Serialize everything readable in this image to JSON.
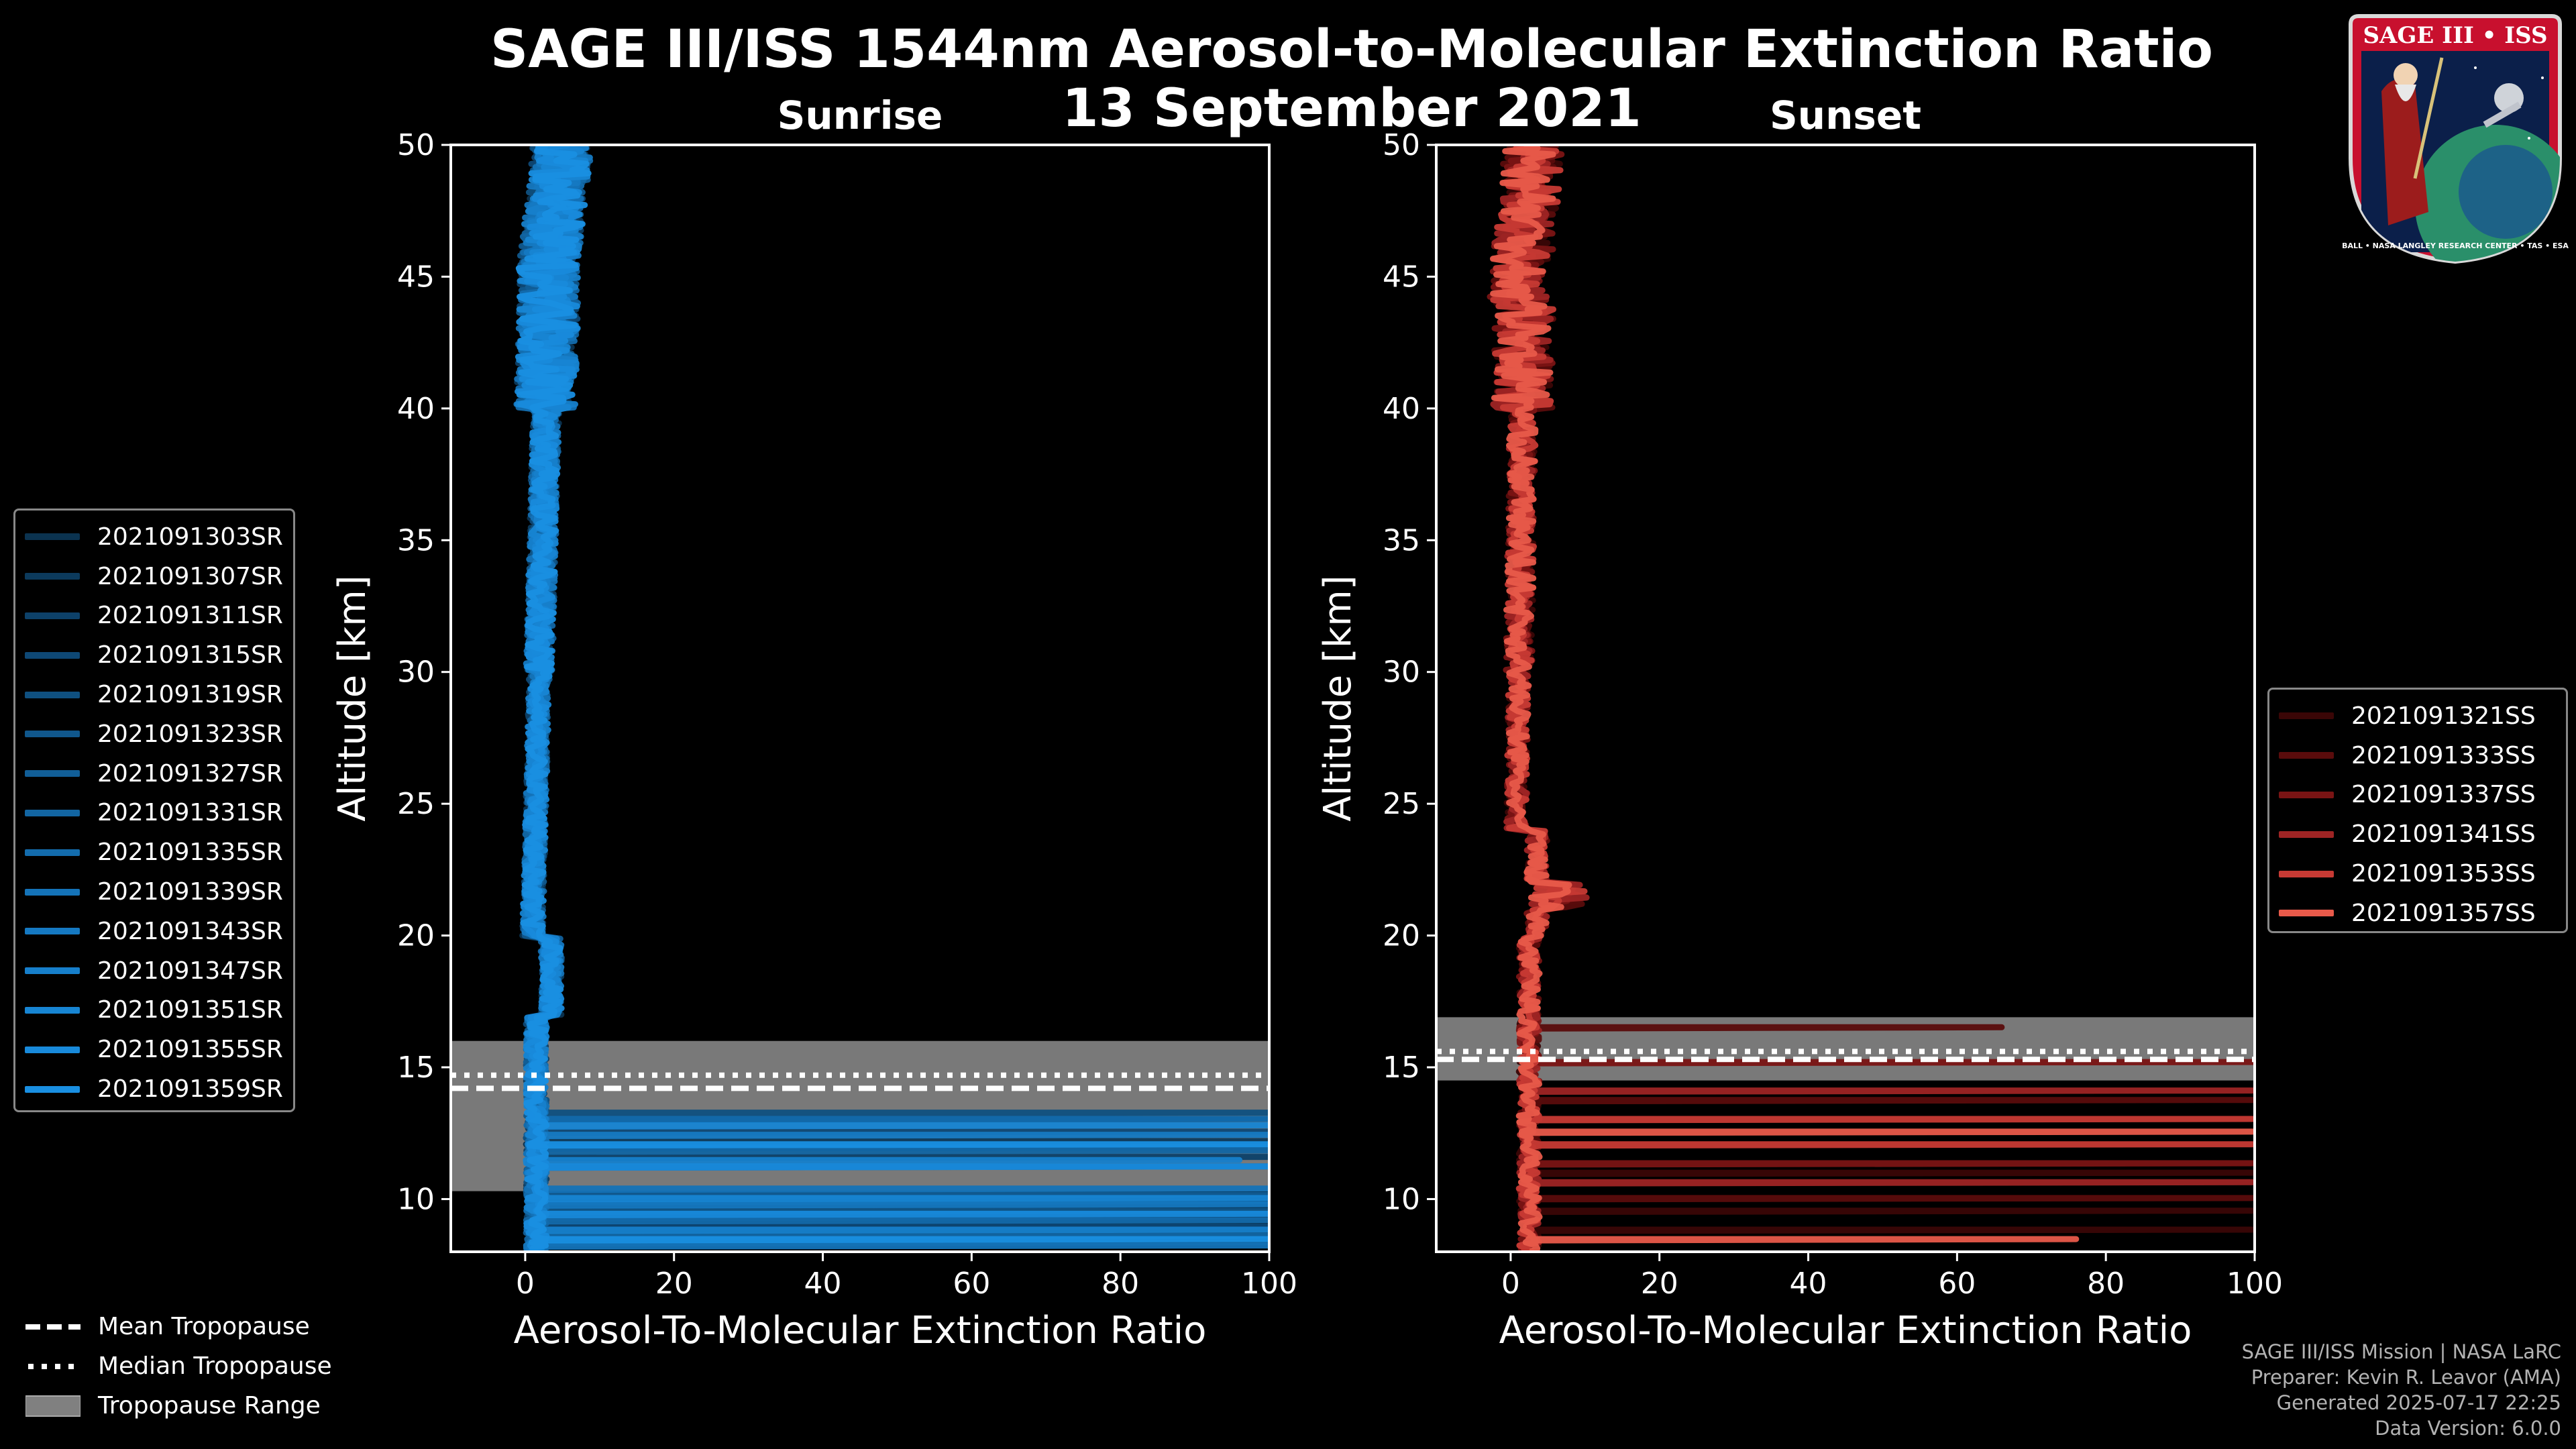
{
  "title": "SAGE III/ISS 1544nm Aerosol-to-Molecular Extinction Ratio",
  "date": "13 September 2021",
  "colors": {
    "background": "#000000",
    "axis": "#ffffff",
    "tropo_range": "#808080"
  },
  "chart_data": [
    {
      "type": "line",
      "title": "Sunrise",
      "xlabel": "Aerosol-To-Molecular Extinction Ratio",
      "ylabel": "Altitude [km]",
      "xlim": [
        -10,
        100
      ],
      "ylim": [
        8,
        50
      ],
      "xticks": [
        0,
        20,
        40,
        60,
        80,
        100
      ],
      "yticks": [
        10,
        15,
        20,
        25,
        30,
        35,
        40,
        45,
        50
      ],
      "tropopause": {
        "mean": 14.2,
        "median": 14.7,
        "range": [
          10.3,
          16.0
        ]
      },
      "series": [
        {
          "name": "2021091303SR",
          "color": "#0b3350",
          "low_spikes": [
            [
              13.0,
              100
            ],
            [
              9.3,
              100
            ]
          ]
        },
        {
          "name": "2021091307SR",
          "color": "#0c3a5c",
          "low_spikes": [
            [
              12.2,
              100
            ],
            [
              8.7,
              100
            ]
          ]
        },
        {
          "name": "2021091311SR",
          "color": "#0d4169",
          "low_spikes": [
            [
              11.6,
              100
            ],
            [
              9.9,
              100
            ]
          ]
        },
        {
          "name": "2021091315SR",
          "color": "#0e4875",
          "low_spikes": [
            [
              12.6,
              100
            ],
            [
              9.0,
              100
            ]
          ]
        },
        {
          "name": "2021091319SR",
          "color": "#0f5080",
          "low_spikes": [
            [
              13.3,
              100
            ],
            [
              8.4,
              100
            ]
          ]
        },
        {
          "name": "2021091323SR",
          "color": "#10578c",
          "low_spikes": [
            [
              11.2,
              100
            ],
            [
              9.6,
              100
            ]
          ]
        },
        {
          "name": "2021091327SR",
          "color": "#115e97",
          "low_spikes": [
            [
              12.0,
              100
            ],
            [
              10.2,
              100
            ]
          ]
        },
        {
          "name": "2021091331SR",
          "color": "#1265a2",
          "low_spikes": [
            [
              11.9,
              100
            ],
            [
              8.6,
              100
            ]
          ]
        },
        {
          "name": "2021091335SR",
          "color": "#136cad",
          "low_spikes": [
            [
              13.1,
              100
            ],
            [
              9.2,
              100
            ]
          ]
        },
        {
          "name": "2021091339SR",
          "color": "#1473b8",
          "low_spikes": [
            [
              10.4,
              100
            ],
            [
              8.2,
              100
            ]
          ]
        },
        {
          "name": "2021091343SR",
          "color": "#1579c2",
          "low_spikes": [
            [
              12.4,
              100
            ],
            [
              9.8,
              100
            ]
          ]
        },
        {
          "name": "2021091347SR",
          "color": "#167fcb",
          "low_spikes": [
            [
              11.5,
              96
            ],
            [
              8.9,
              100
            ]
          ]
        },
        {
          "name": "2021091351SR",
          "color": "#1785d3",
          "low_spikes": [
            [
              12.8,
              100
            ],
            [
              10.0,
              100
            ]
          ]
        },
        {
          "name": "2021091355SR",
          "color": "#188adb",
          "low_spikes": [
            [
              11.3,
              100
            ],
            [
              9.4,
              100
            ]
          ]
        },
        {
          "name": "2021091359SR",
          "color": "#198fe2",
          "low_spikes": [
            [
              12.1,
              100
            ],
            [
              8.5,
              100
            ]
          ]
        }
      ]
    },
    {
      "type": "line",
      "title": "Sunset",
      "xlabel": "Aerosol-To-Molecular Extinction Ratio",
      "ylabel": "Altitude [km]",
      "xlim": [
        -10,
        100
      ],
      "ylim": [
        8,
        50
      ],
      "xticks": [
        0,
        20,
        40,
        60,
        80,
        100
      ],
      "yticks": [
        10,
        15,
        20,
        25,
        30,
        35,
        40,
        45,
        50
      ],
      "tropopause": {
        "mean": 15.3,
        "median": 15.6,
        "range": [
          14.5,
          16.9
        ]
      },
      "series": [
        {
          "name": "2021091321SS",
          "color": "#3a0606",
          "low_spikes": [
            [
              11.0,
              100
            ],
            [
              9.6,
              100
            ],
            [
              8.8,
              100
            ]
          ]
        },
        {
          "name": "2021091333SS",
          "color": "#5a0c0c",
          "low_spikes": [
            [
              16.5,
              66
            ],
            [
              10.1,
              100
            ],
            [
              13.8,
              100
            ]
          ]
        },
        {
          "name": "2021091337SS",
          "color": "#7a1414",
          "low_spikes": [
            [
              15.2,
              100
            ],
            [
              11.4,
              100
            ]
          ]
        },
        {
          "name": "2021091341SS",
          "color": "#9e2424",
          "low_spikes": [
            [
              14.1,
              100
            ],
            [
              10.6,
              100
            ]
          ]
        },
        {
          "name": "2021091353SS",
          "color": "#c73a34",
          "low_spikes": [
            [
              13.0,
              100
            ],
            [
              12.1,
              100
            ]
          ]
        },
        {
          "name": "2021091357SS",
          "color": "#e85a4a",
          "low_spikes": [
            [
              12.6,
              100
            ],
            [
              8.5,
              76
            ]
          ]
        }
      ]
    }
  ],
  "bottom_legend": {
    "mean": "Mean Tropopause",
    "median": "Median Tropopause",
    "range": "Tropopause Range"
  },
  "logo": {
    "top_text": "SAGE III • ISS",
    "ring_text": "BALL • NASA LANGLEY RESEARCH CENTER • TAS • ESA"
  },
  "footer": {
    "line1": "SAGE III/ISS Mission | NASA LaRC",
    "line2": "Preparer: Kevin R. Leavor (AMA)",
    "line3": "Generated 2025-07-17 22:25",
    "line4": "Data Version: 6.0.0"
  }
}
